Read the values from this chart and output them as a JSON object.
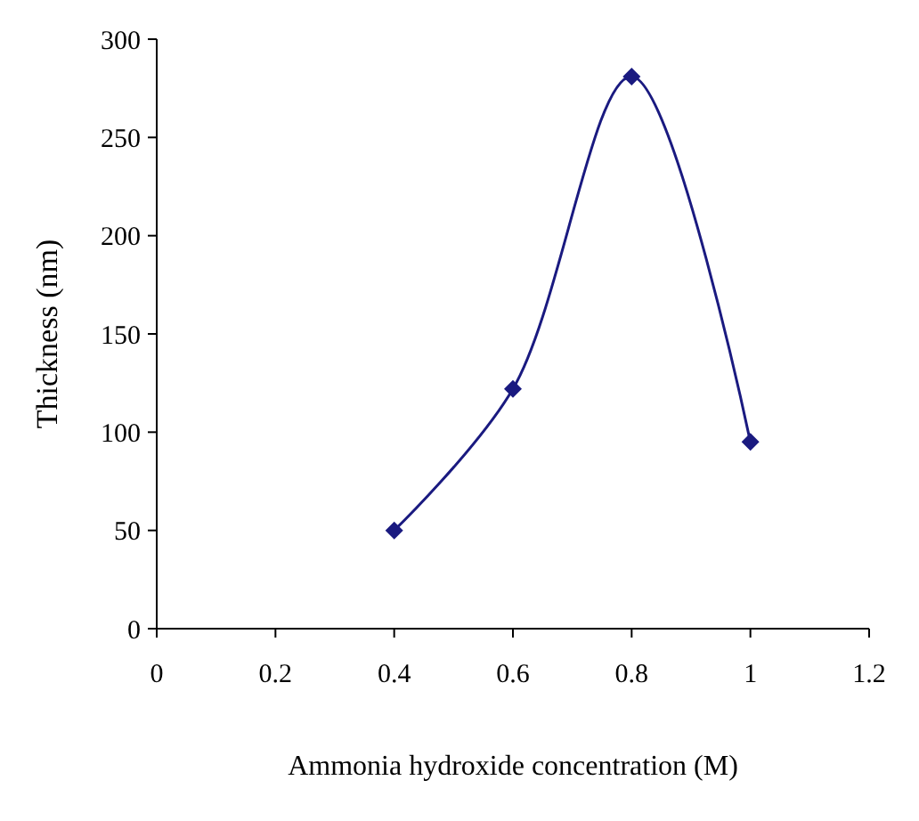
{
  "chart_data": {
    "type": "line",
    "xlabel": "Ammonia hydroxide concentration (M)",
    "ylabel": "Thickness (nm)",
    "x": [
      0.4,
      0.6,
      0.8,
      1.0
    ],
    "series": [
      {
        "color": "#1a1a80",
        "values": [
          50,
          122,
          281,
          95
        ]
      }
    ],
    "xlim": [
      0,
      1.2
    ],
    "xticks": [
      0,
      0.2,
      0.4,
      0.6,
      0.8,
      1,
      1.2
    ],
    "ylim": [
      0,
      300
    ],
    "yticks": [
      0,
      50,
      100,
      150,
      200,
      250,
      300
    ],
    "marker": "diamond",
    "line_style": "solid"
  }
}
